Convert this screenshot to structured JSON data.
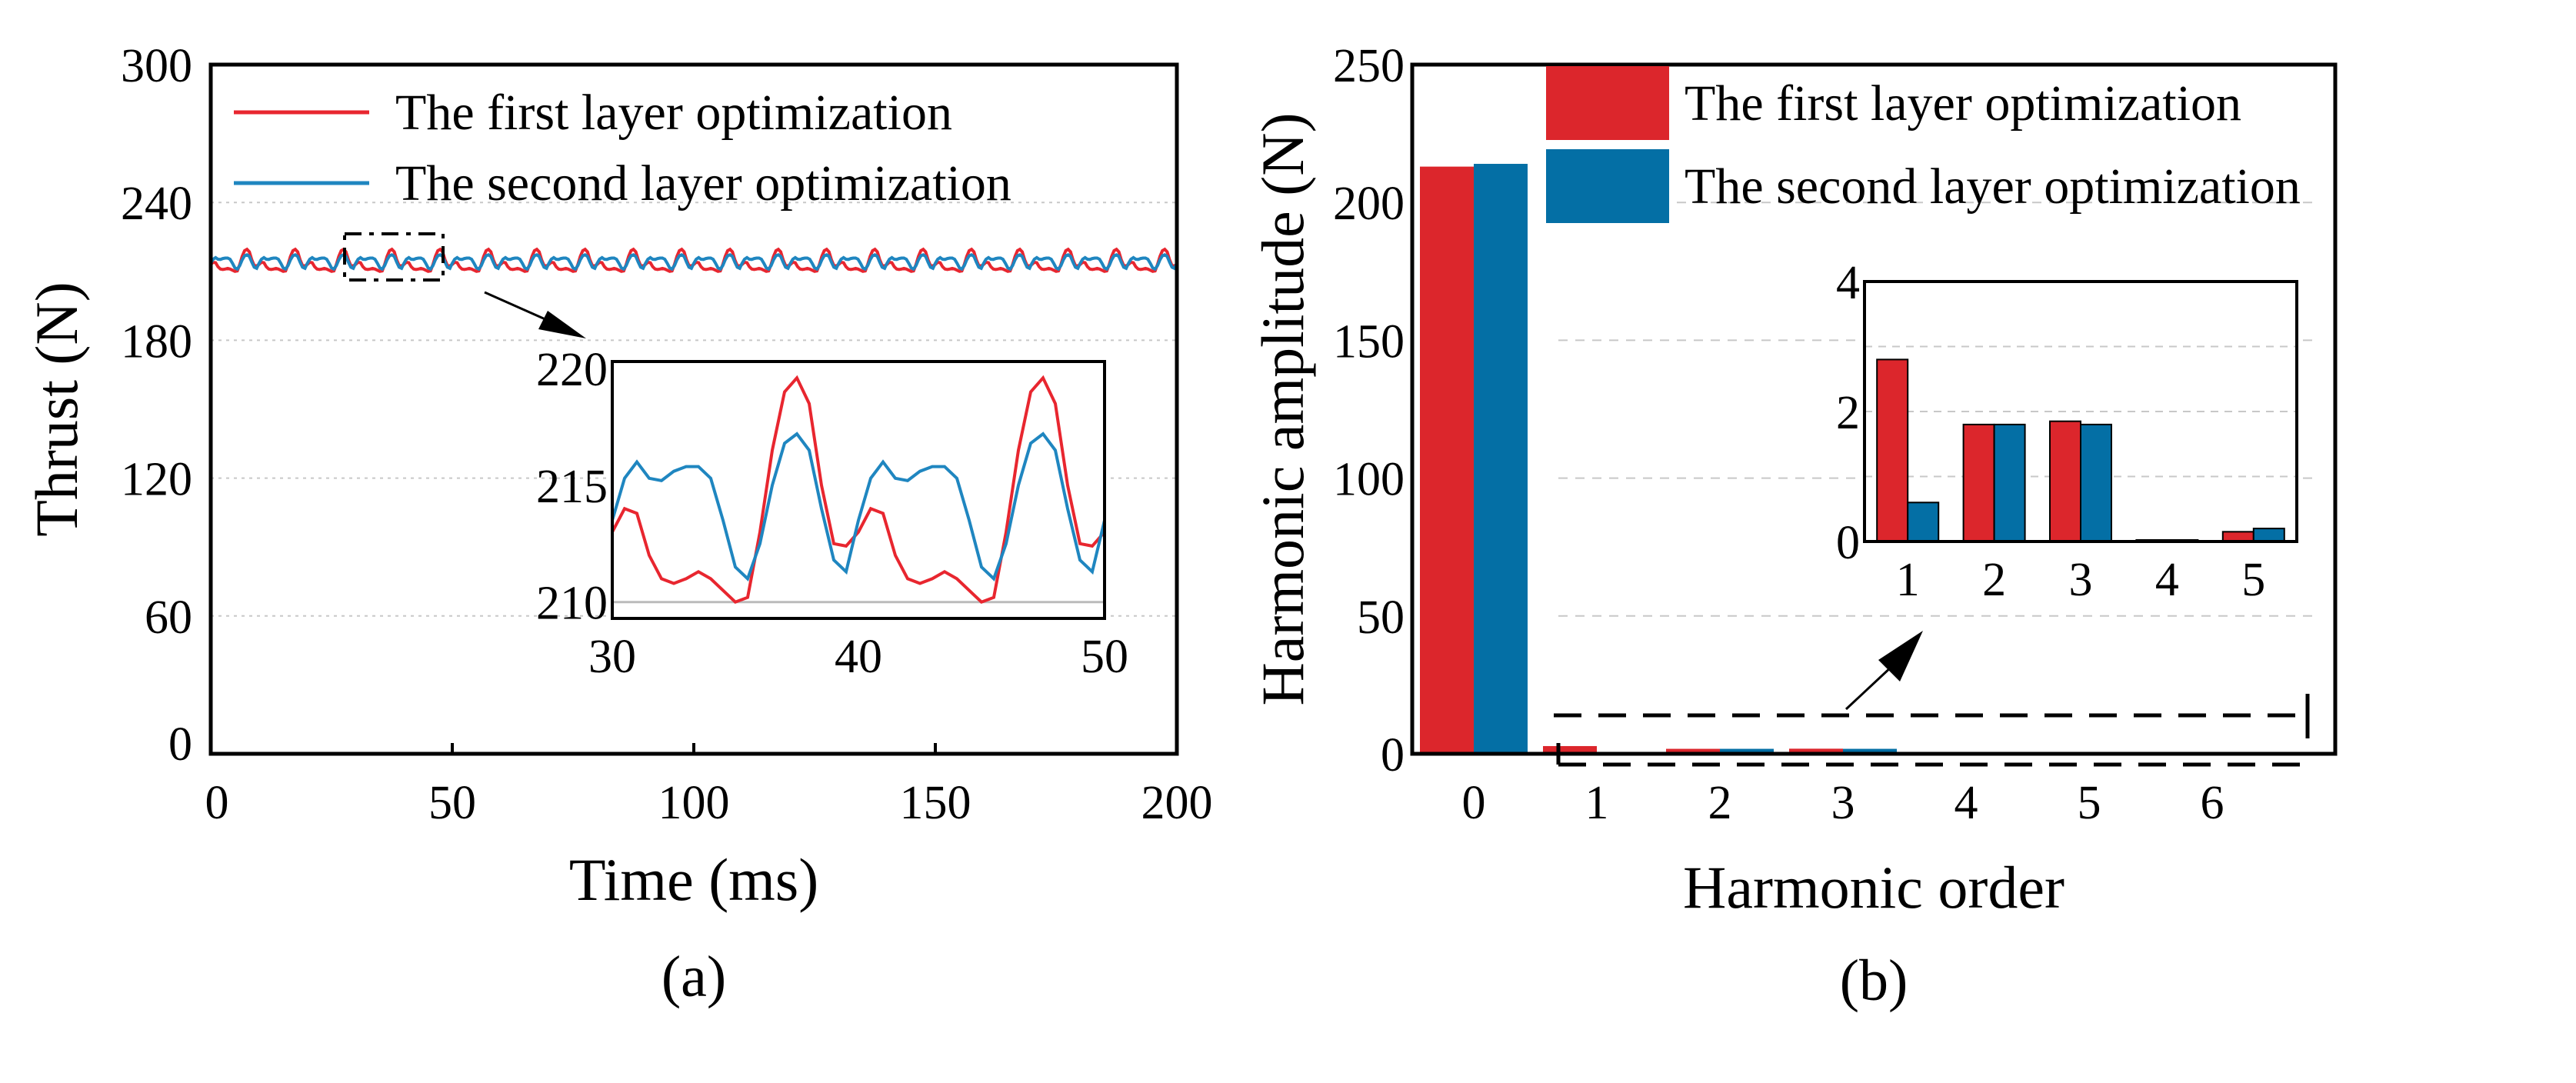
{
  "colors": {
    "first": "#e8262f",
    "second": "#1f86c0",
    "first_bar": "#dc262c",
    "second_bar": "#046fa5",
    "grid": "#c8c8c8"
  },
  "chart_data": [
    {
      "type": "line",
      "caption": "(a)",
      "xlabel": "Time (ms)",
      "ylabel": "Thrust (N)",
      "xlim": [
        0,
        200
      ],
      "ylim": [
        0,
        300
      ],
      "xticks": [
        "0",
        "50",
        "100",
        "150",
        "200"
      ],
      "yticks": [
        "0",
        "60",
        "120",
        "180",
        "240",
        "300"
      ],
      "grid": true,
      "legend_position": "top-left",
      "waveform_period_ms": 10,
      "waveform_step_ms": 0.5,
      "series": [
        {
          "name": "The first layer optimization",
          "color_key": "first",
          "period_values": [
            213,
            214,
            213.8,
            212,
            211,
            210.8,
            211,
            211.3,
            211,
            210.5,
            210,
            210.2,
            213,
            216.5,
            219,
            219.6,
            218.5,
            215,
            212.5,
            212.4
          ]
        },
        {
          "name": "The second layer optimization",
          "color_key": "second",
          "period_values": [
            213.5,
            215.3,
            216,
            215.3,
            215.2,
            215.6,
            215.8,
            215.8,
            215.3,
            213.5,
            211.5,
            211,
            212.5,
            215,
            216.8,
            217.2,
            216.5,
            214,
            211.8,
            211.3
          ]
        }
      ],
      "inset": {
        "xlim": [
          30,
          50
        ],
        "ylim": [
          209.3,
          220.3
        ],
        "xticks": [
          "30",
          "40",
          "50"
        ],
        "yticks": [
          "210",
          "215",
          "220"
        ]
      }
    },
    {
      "type": "bar",
      "caption": "(b)",
      "xlabel": "Harmonic order",
      "ylabel": "Harmonic amplitude (N)",
      "categories": [
        "0",
        "1",
        "2",
        "3",
        "4",
        "5",
        "6"
      ],
      "ylim": [
        0,
        250
      ],
      "yticks": [
        "0",
        "50",
        "100",
        "150",
        "200",
        "250"
      ],
      "grid": true,
      "legend_position": "top-right",
      "series": [
        {
          "name": "The first layer optimization",
          "color_key": "first_bar",
          "values": [
            213,
            2.8,
            1.8,
            1.85,
            0.02,
            0.15,
            0
          ]
        },
        {
          "name": "The second layer optimization",
          "color_key": "second_bar",
          "values": [
            214,
            0.6,
            1.8,
            1.8,
            0.02,
            0.2,
            0
          ]
        }
      ],
      "inset": {
        "categories": [
          "1",
          "2",
          "3",
          "4",
          "5"
        ],
        "ylim": [
          0,
          4
        ],
        "yticks": [
          "0",
          "2",
          "4"
        ]
      }
    }
  ]
}
